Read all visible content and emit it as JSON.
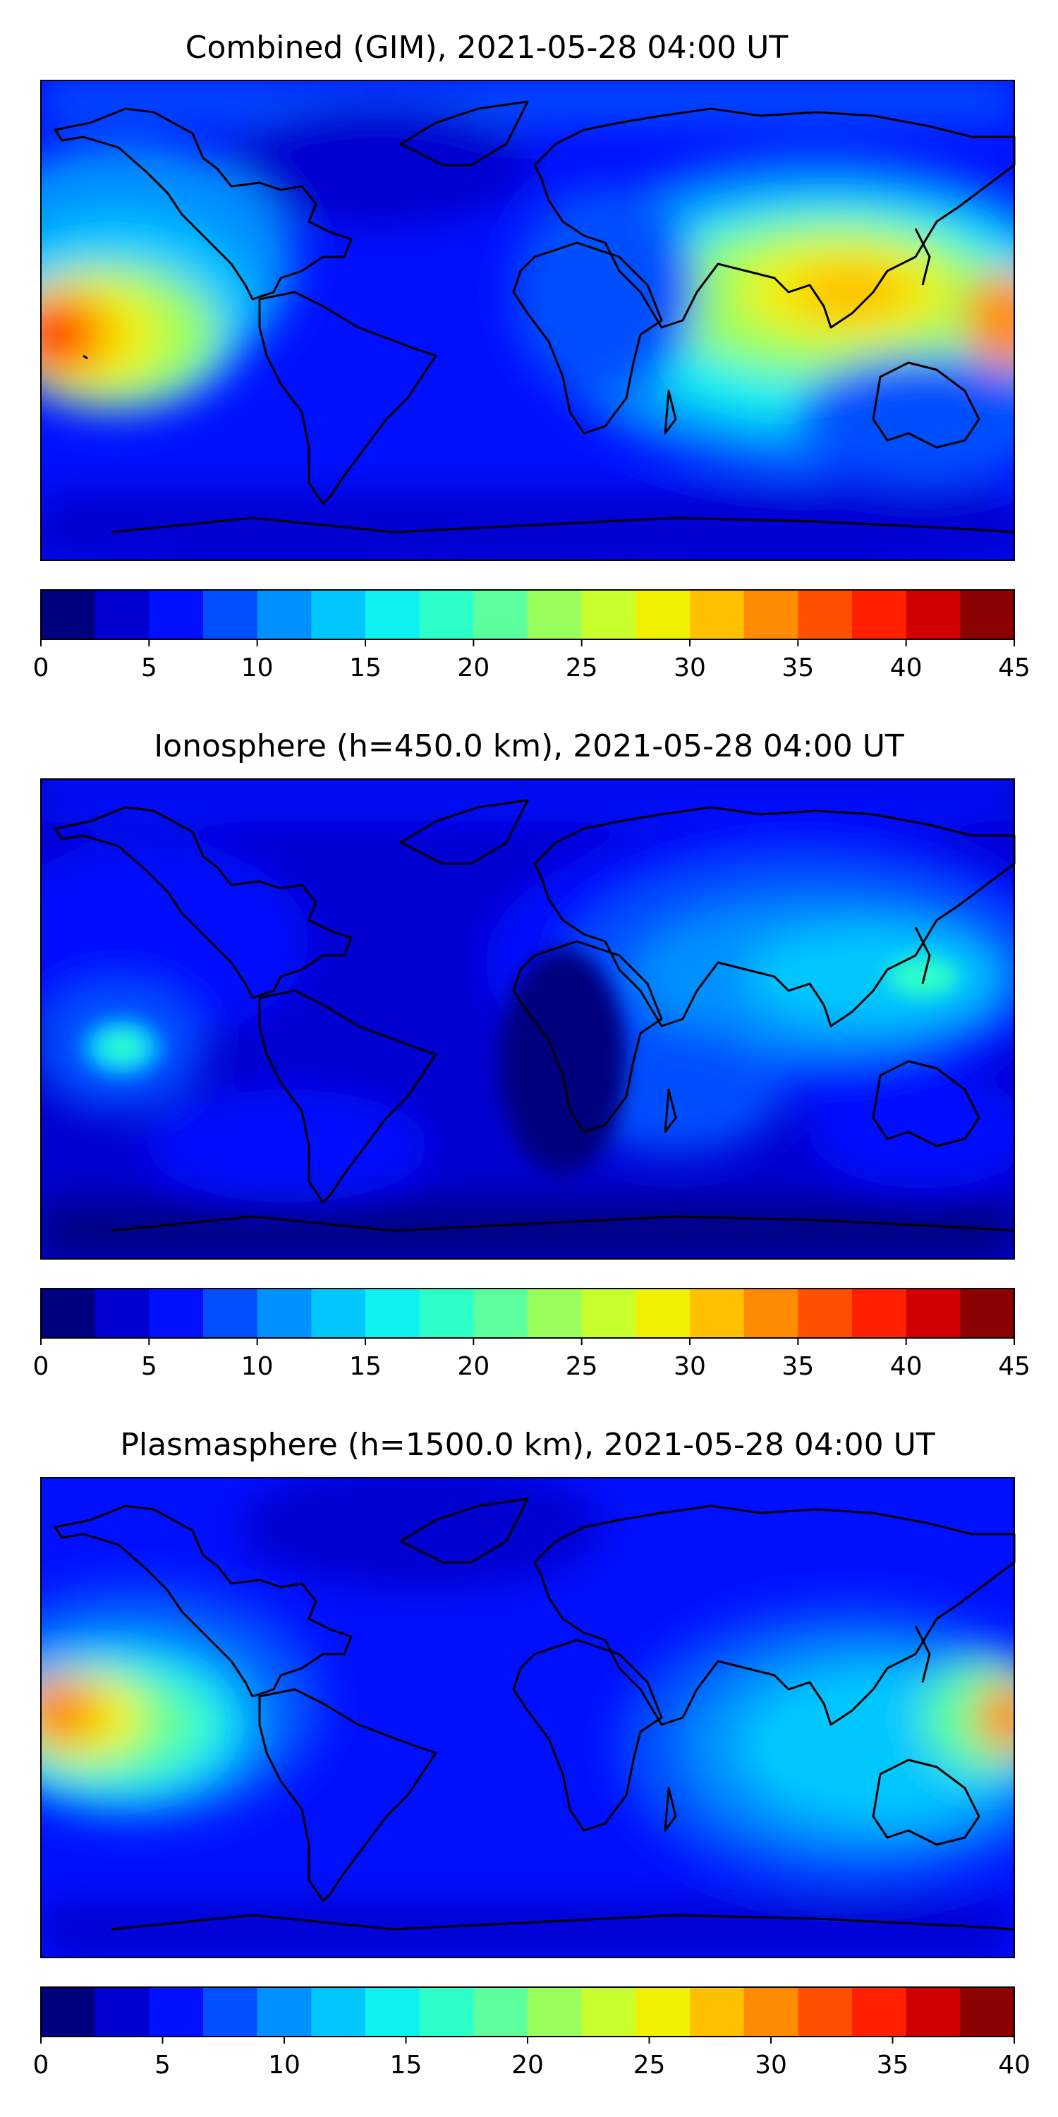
{
  "colors": {
    "jet": [
      "#00007f",
      "#0000d0",
      "#0010ff",
      "#0050ff",
      "#0090ff",
      "#00c8ff",
      "#0ff0f0",
      "#2dffc9",
      "#5cff9b",
      "#99ff5c",
      "#c9ff2d",
      "#f0f000",
      "#ffc000",
      "#ff8c00",
      "#ff5000",
      "#ff2000",
      "#d00000",
      "#8b0000"
    ],
    "coastline": "#000000"
  },
  "maps": [
    {
      "title": "Combined (GIM), 2021-05-28 04:00 UT",
      "colorbar": {
        "min": 0,
        "max": 45,
        "ticks": [
          "0",
          "5",
          "10",
          "15",
          "20",
          "25",
          "30",
          "35",
          "40",
          "45"
        ]
      }
    },
    {
      "title": "Ionosphere  (h=450.0 km), 2021-05-28 04:00 UT",
      "colorbar": {
        "min": 0,
        "max": 45,
        "ticks": [
          "0",
          "5",
          "10",
          "15",
          "20",
          "25",
          "30",
          "35",
          "40",
          "45"
        ]
      }
    },
    {
      "title": "Plasmasphere (h=1500.0 km), 2021-05-28 04:00 UT",
      "colorbar": {
        "min": 0,
        "max": 40,
        "ticks": [
          "0",
          "5",
          "10",
          "15",
          "20",
          "25",
          "30",
          "35",
          "40"
        ]
      }
    }
  ]
}
